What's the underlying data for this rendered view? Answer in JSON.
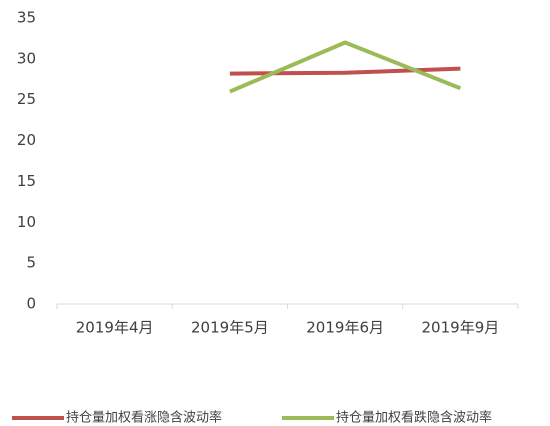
{
  "chart_data": {
    "type": "line",
    "categories": [
      "2019年4月",
      "2019年5月",
      "2019年6月",
      "2019年9月"
    ],
    "series": [
      {
        "name": "持仓量加权看涨隐含波动率",
        "color": "#c0504d",
        "values": [
          null,
          28.2,
          28.3,
          28.8
        ]
      },
      {
        "name": "持仓量加权看跌隐含波动率",
        "color": "#9bbb59",
        "values": [
          null,
          26.0,
          32.0,
          26.4
        ]
      }
    ],
    "ylim": [
      0,
      35
    ],
    "yticks": [
      0,
      5,
      10,
      15,
      20,
      25,
      30,
      35
    ],
    "grid": false,
    "legend": "bottom"
  }
}
